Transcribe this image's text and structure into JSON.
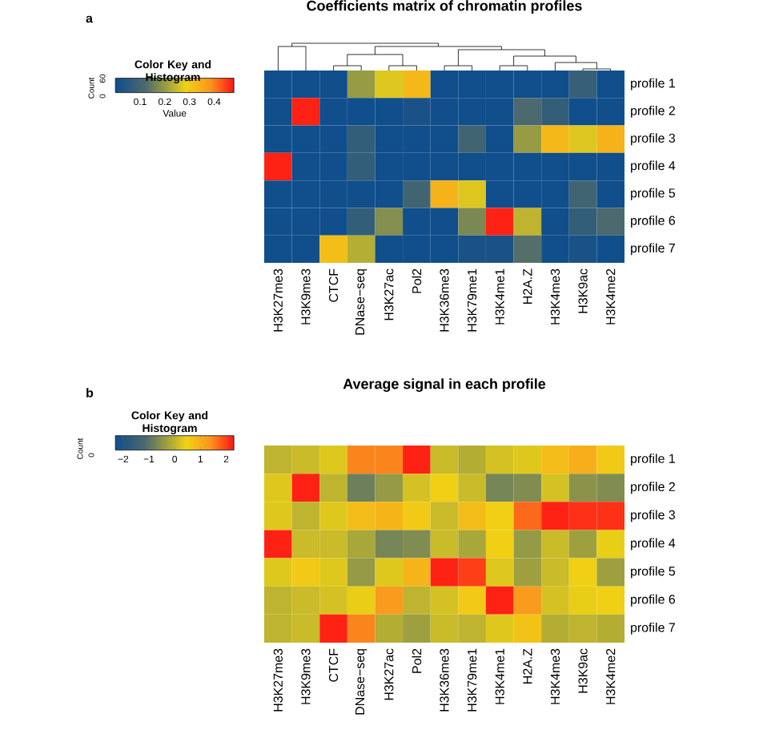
{
  "chart_data": [
    {
      "type": "heatmap",
      "title": "Coefficients matrix of chromatin profiles",
      "clabel": "Value",
      "annotations": [
        "a",
        "Color Key and Histogram",
        "Count",
        "0",
        "60"
      ],
      "categories": [
        "H3K27me3",
        "H3K9me3",
        "CTCF",
        "DNase−seq",
        "H3K27ac",
        "Pol2",
        "H3K36me3",
        "H3K79me1",
        "H3K4me1",
        "H2A.Z",
        "H3K4me3",
        "H3K9ac",
        "H3K4me2"
      ],
      "y_categories": [
        "profile 1",
        "profile 2",
        "profile 3",
        "profile 4",
        "profile 5",
        "profile 6",
        "profile 7"
      ],
      "cells": [
        [
          0,
          0,
          0,
          0.2,
          0.27,
          0.33,
          0,
          0,
          0,
          0,
          0,
          0.08,
          0
        ],
        [
          0,
          0.47,
          0,
          0,
          0,
          0.02,
          0,
          0,
          0,
          0.12,
          0.07,
          0,
          0
        ],
        [
          0,
          0,
          0,
          0.07,
          0,
          0,
          0,
          0.1,
          0,
          0.2,
          0.33,
          0.27,
          0.34
        ],
        [
          0.47,
          0,
          0,
          0.07,
          0,
          0,
          0,
          0,
          0,
          0,
          0,
          0,
          0
        ],
        [
          0,
          0,
          0,
          0,
          0,
          0.1,
          0.34,
          0.27,
          0,
          0,
          0,
          0.1,
          0
        ],
        [
          0,
          0,
          0,
          0.07,
          0.18,
          0,
          0,
          0.17,
          0.47,
          0.24,
          0,
          0.07,
          0.12
        ],
        [
          0,
          0,
          0.32,
          0.23,
          0,
          0,
          0,
          0.02,
          0.02,
          0.13,
          0,
          0.02,
          0
        ]
      ],
      "clim": [
        0,
        0.48
      ],
      "cticks": [
        0.1,
        0.2,
        0.3,
        0.4
      ]
    },
    {
      "type": "heatmap",
      "title": "Average signal in each profile",
      "annotations": [
        "b",
        "Color Key and Histogram",
        "Count",
        "0"
      ],
      "categories": [
        "H3K27me3",
        "H3K9me3",
        "CTCF",
        "DNase−seq",
        "H3K27ac",
        "Pol2",
        "H3K36me3",
        "H3K79me1",
        "H3K4me1",
        "H2A.Z",
        "H3K4me3",
        "H3K9ac",
        "H3K4me2"
      ],
      "y_categories": [
        "profile 1",
        "profile 2",
        "profile 3",
        "profile 4",
        "profile 5",
        "profile 6",
        "profile 7"
      ],
      "cells": [
        [
          0,
          0.1,
          0.3,
          1.5,
          1.5,
          2.2,
          0.1,
          -0.1,
          0.2,
          0.3,
          0.8,
          1.0,
          0.6
        ],
        [
          0.3,
          2.2,
          0,
          -0.8,
          -0.4,
          0.2,
          0.5,
          0.1,
          -0.7,
          -0.6,
          0.2,
          -0.5,
          -0.6
        ],
        [
          0.3,
          0,
          0.3,
          0.8,
          0.9,
          0.6,
          0.1,
          0.8,
          0.5,
          1.7,
          2.2,
          2.1,
          2.1
        ],
        [
          2.2,
          0.1,
          0.1,
          -0.2,
          -0.7,
          -0.6,
          0.1,
          -0.2,
          0.5,
          -0.4,
          0.1,
          -0.3,
          0.4
        ],
        [
          0.3,
          0.6,
          0.3,
          -0.4,
          0.3,
          0.9,
          2.2,
          2.0,
          0.3,
          -0.3,
          0.1,
          0.5,
          -0.3
        ],
        [
          0,
          0.1,
          0.2,
          0.4,
          1.3,
          0,
          0.2,
          0.6,
          2.2,
          1.3,
          0.2,
          0.4,
          0.5
        ],
        [
          0,
          0.1,
          2.2,
          1.5,
          -0.1,
          -0.3,
          0.1,
          0,
          0.3,
          0.7,
          -0.1,
          0,
          -0.1
        ]
      ],
      "clim": [
        -2.3,
        2.3
      ],
      "cticks": [
        {
          "value": -2,
          "label": "−2"
        },
        {
          "value": -1,
          "label": "−1"
        },
        0,
        1,
        2
      ]
    }
  ]
}
